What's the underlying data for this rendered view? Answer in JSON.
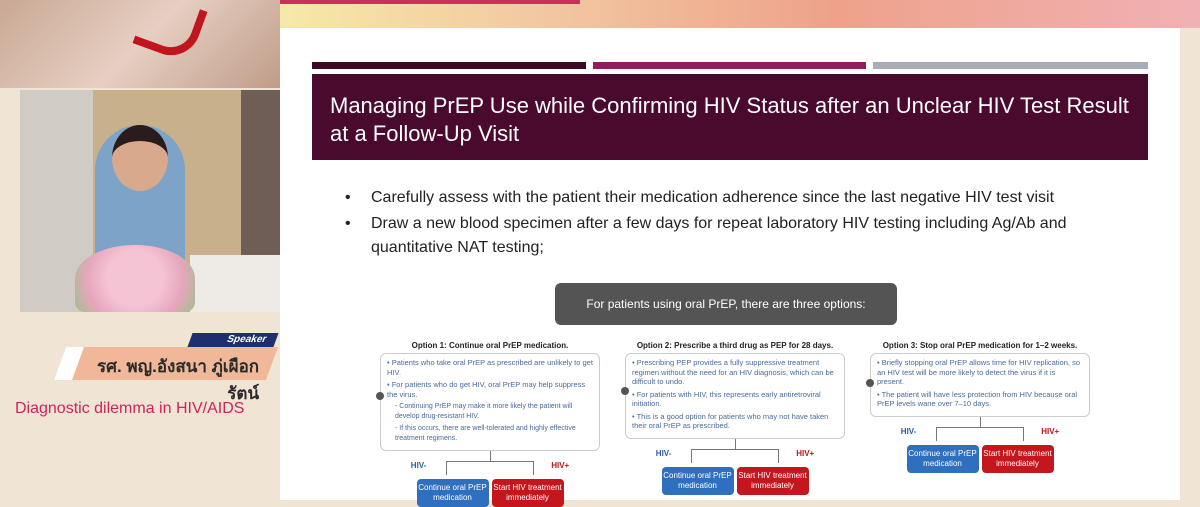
{
  "speaker": {
    "tag": "Speaker",
    "name": "รศ. พญ.อังสนา ภู่เผือกรัตน์",
    "topic": "Diagnostic dilemma in HIV/AIDS"
  },
  "slide": {
    "title": "Managing PrEP Use while Confirming HIV Status after an Unclear HIV Test Result at a Follow-Up Visit",
    "bar_colors": [
      "#3d0a26",
      "#8c1f5e",
      "#a9adb7"
    ],
    "bullets": [
      "Carefully assess with the patient their medication adherence since the last negative HIV test visit",
      "Draw a new blood specimen after a few days for repeat laboratory HIV testing including Ag/Ab and quantitative NAT testing;"
    ],
    "intro": "For patients using oral PrEP, there are three options:",
    "options": [
      {
        "title": "Option 1: Continue oral PrEP medication.",
        "points": [
          "• Patients who take oral PrEP as prescribed are unlikely to get HIV.",
          "• For patients who do get HIV, oral PrEP may help suppress the virus."
        ],
        "subpoints": [
          "- Continuing PrEP may make it more likely the patient will develop drug-resistant HIV.",
          "- If this occurs, there are well-tolerated and highly effective treatment regimens."
        ]
      },
      {
        "title": "Option 2: Prescribe a third drug as PEP for 28 days.",
        "points": [
          "• Prescribing PEP provides a fully suppressive treatment regimen without the need for an HIV diagnosis, which can be difficult to undo.",
          "• For patients with HIV, this represents early antiretroviral initiation.",
          "• This is a good option for patients who may not have taken their oral PrEP as prescribed."
        ]
      },
      {
        "title": "Option 3: Stop oral PrEP medication for 1–2 weeks.",
        "points": [
          "• Briefly stopping oral PrEP allows time for HIV replication, so an HIV test will be more likely to detect the virus if it is present.",
          "• The patient will have less protection from HIV because oral PrEP levels wane over 7–10 days."
        ]
      }
    ],
    "neg_label": "HIV-",
    "pos_label": "HIV+",
    "continue_label": "Continue oral PrEP medication",
    "start_label": "Start HIV treatment immediately"
  }
}
